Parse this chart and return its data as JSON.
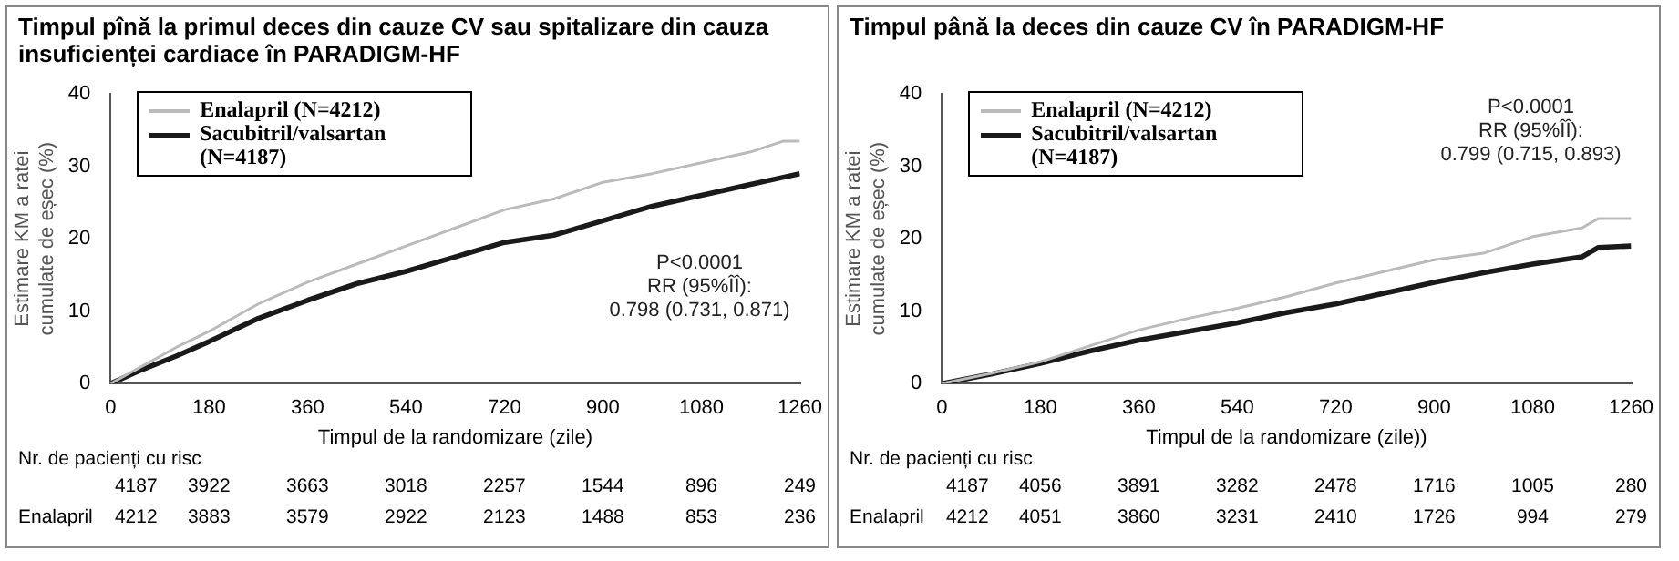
{
  "chart_data": [
    {
      "type": "line",
      "title": "Timpul pînă la primul deces din cauze CV sau spitalizare din cauza insuficienței cardiace în PARADIGM-HF",
      "xlabel": "Timpul de la randomizare (zile)",
      "ylabel": "Estimare KM a ratei cumulate de eșec (%)",
      "x": [
        0,
        60,
        120,
        180,
        270,
        360,
        450,
        540,
        630,
        720,
        810,
        900,
        990,
        1080,
        1170,
        1230,
        1260
      ],
      "series": [
        {
          "name": "Enalapril (N=4212)",
          "color": "#bbbbbb",
          "values": [
            0,
            2.5,
            5,
            7.2,
            11,
            14,
            16.5,
            19,
            21.5,
            24,
            25.5,
            27.8,
            29,
            30.5,
            32,
            33.5,
            33.5
          ]
        },
        {
          "name": "Sacubitril/valsartan (N=4187)",
          "color": "#1a1a1a",
          "values": [
            0,
            2,
            3.8,
            5.8,
            9,
            11.5,
            13.8,
            15.5,
            17.5,
            19.5,
            20.5,
            22.5,
            24.5,
            26,
            27.5,
            28.5,
            29
          ]
        }
      ],
      "xlim": [
        0,
        1260
      ],
      "xticks": [
        0,
        180,
        360,
        540,
        720,
        900,
        1080,
        1260
      ],
      "ylim": [
        0,
        40
      ],
      "yticks": [
        0,
        10,
        20,
        30,
        40
      ],
      "legend": "top left",
      "annotations": [
        "P<0.0001\nRR (95%ÎÎ):\n0.798 (0.731, 0.871)",
        "Nr. de pacienți cu risc",
        "4187 3922 3663 3018 2257 1544 896 249",
        "Enalapril 4212 3883 3579 2922 2123 1488 853 236"
      ]
    },
    {
      "type": "line",
      "title": "Timpul până la deces din cauze CV în PARADIGM-HF",
      "xlabel": "Timpul de la randomizare (zile))",
      "ylabel": "Estimare KM a ratei cumulate de eșec (%)",
      "x": [
        0,
        90,
        180,
        270,
        360,
        450,
        540,
        630,
        720,
        810,
        900,
        990,
        1080,
        1170,
        1200,
        1260
      ],
      "series": [
        {
          "name": "Enalapril (N=4212)",
          "color": "#bbbbbb",
          "values": [
            0,
            1.4,
            3,
            5.2,
            7.4,
            9,
            10.4,
            12,
            13.9,
            15.5,
            17.1,
            18,
            20.3,
            21.5,
            22.8,
            22.8
          ]
        },
        {
          "name": "Sacubitril/valsartan (N=4187)",
          "color": "#1a1a1a",
          "values": [
            0,
            1.3,
            2.8,
            4.5,
            6,
            7.2,
            8.4,
            9.8,
            11,
            12.5,
            14,
            15.3,
            16.5,
            17.5,
            18.8,
            19
          ]
        }
      ],
      "xlim": [
        0,
        1260
      ],
      "xticks": [
        0,
        180,
        360,
        540,
        720,
        900,
        1080,
        1260
      ],
      "ylim": [
        0,
        40
      ],
      "yticks": [
        0,
        10,
        20,
        30,
        40
      ],
      "legend": "top left",
      "annotations": [
        "P<0.0001\nRR (95%ÎÎ):\n0.799 (0.715, 0.893)",
        "Nr. de pacienți cu risc",
        "4187 4056 3891 3282 2478 1716 1005 280",
        "Enalapril 4212 4051 3860 3231 2410 1726 994 279"
      ]
    }
  ]
}
